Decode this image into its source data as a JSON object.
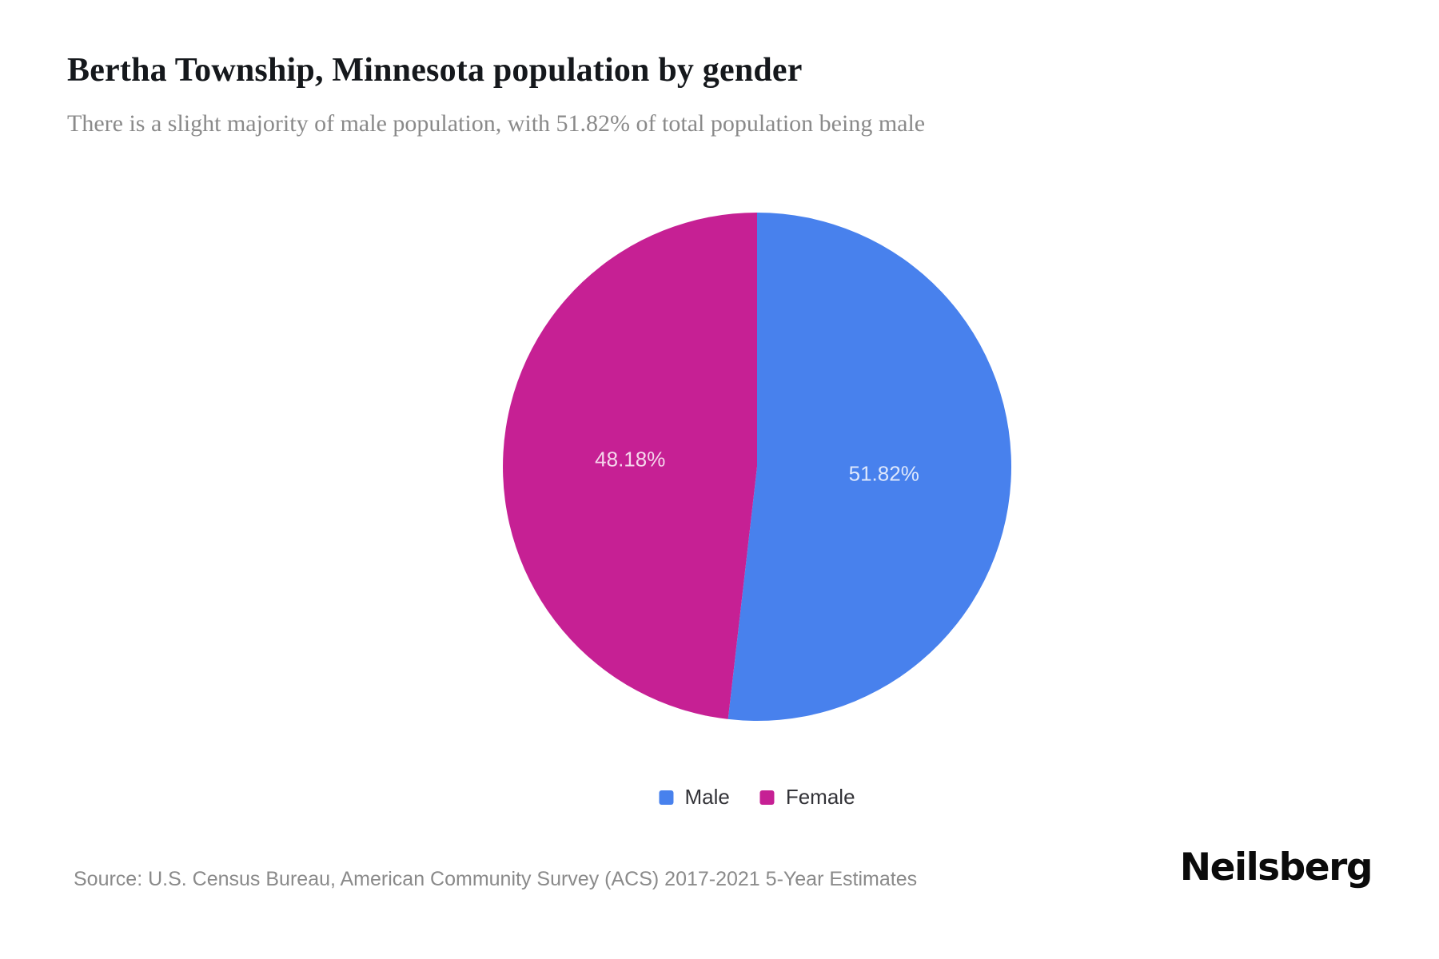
{
  "header": {
    "title": "Bertha Township, Minnesota population by gender",
    "subtitle": "There is a slight majority of male population, with 51.82% of total population being male"
  },
  "chart_data": {
    "type": "pie",
    "title": "Bertha Township, Minnesota population by gender",
    "start_angle_deg": 0,
    "direction": "clockwise",
    "legend_position": "bottom",
    "label_color": "rgba(255,255,255,0.82)",
    "categories": [
      "Male",
      "Female"
    ],
    "values": [
      51.82,
      48.18
    ],
    "slices": [
      {
        "label": "Male",
        "value": 51.82,
        "display": "51.82%",
        "color": "#4881ED"
      },
      {
        "label": "Female",
        "value": 48.18,
        "display": "48.18%",
        "color": "#C62094"
      }
    ]
  },
  "legend": {
    "items": [
      {
        "label": "Male",
        "color": "#4881ED"
      },
      {
        "label": "Female",
        "color": "#C62094"
      }
    ]
  },
  "footer": {
    "source": "Source: U.S. Census Bureau, American Community Survey (ACS) 2017-2021 5-Year Estimates",
    "brand": "Neilsberg"
  }
}
